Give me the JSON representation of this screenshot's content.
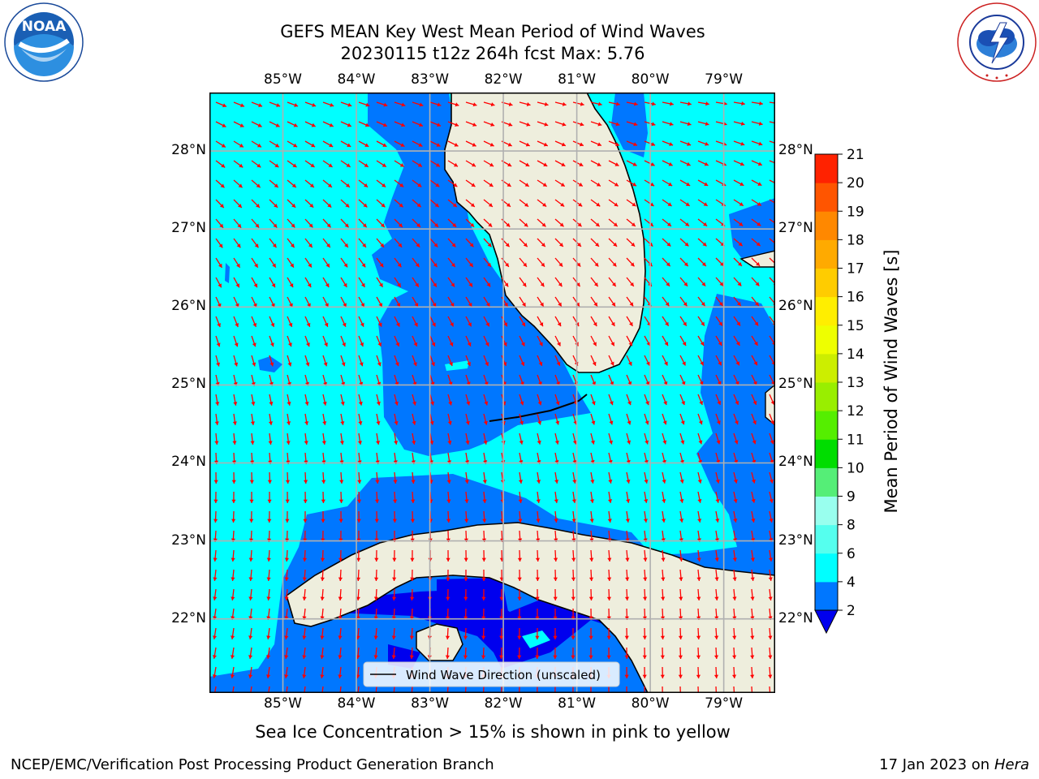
{
  "header": {
    "title_line1": "GEFS MEAN Key West Mean Period of Wind Waves",
    "title_line2": "20230115 t12z 264h fcst   Max: 5.76"
  },
  "logos": {
    "noaa": {
      "label": "NOAA",
      "ring_text": "NATIONAL OCEANIC AND ATMOSPHERIC ADMINISTRATION · U.S. DEPARTMENT OF COMMERCE",
      "icon": "noaa-logo-icon"
    },
    "nws": {
      "ring_text": "NATIONAL WEATHER SERVICE",
      "icon": "nws-logo-icon"
    }
  },
  "map": {
    "lon_range": [
      -86.0,
      -78.3
    ],
    "lat_range": [
      21.05,
      28.75
    ],
    "lon_ticks": [
      {
        "value": -85,
        "label": "85°W"
      },
      {
        "value": -84,
        "label": "84°W"
      },
      {
        "value": -83,
        "label": "83°W"
      },
      {
        "value": -82,
        "label": "82°W"
      },
      {
        "value": -81,
        "label": "81°W"
      },
      {
        "value": -80,
        "label": "80°W"
      },
      {
        "value": -79,
        "label": "79°W"
      }
    ],
    "lat_ticks": [
      {
        "value": 28,
        "label": "28°N"
      },
      {
        "value": 27,
        "label": "27°N"
      },
      {
        "value": 26,
        "label": "26°N"
      },
      {
        "value": 25,
        "label": "25°N"
      },
      {
        "value": 24,
        "label": "24°N"
      },
      {
        "value": 23,
        "label": "23°N"
      },
      {
        "value": 22,
        "label": "22°N"
      }
    ],
    "colors": {
      "land": "#eeeedd",
      "arrow": "#ff0000",
      "grid": "#b0b0b0"
    },
    "legend_label": "Wind Wave Direction (unscaled)",
    "sea_ice_note": "Sea Ice Concentration > 15% is shown in pink to yellow"
  },
  "colorbar": {
    "label": "Mean Period of Wind Waves [s]",
    "tick_labels": [
      "2",
      "4",
      "6",
      "8",
      "9",
      "10",
      "11",
      "12",
      "13",
      "14",
      "15",
      "16",
      "17",
      "18",
      "19",
      "20",
      "21"
    ],
    "colors": [
      "#0077ff",
      "#00ffff",
      "#55ffee",
      "#99ffee",
      "#55ee77",
      "#00dd00",
      "#55ee00",
      "#99ee00",
      "#ccee00",
      "#eeff00",
      "#ffee00",
      "#ffcc00",
      "#ffaa00",
      "#ff8800",
      "#ff5500",
      "#ff2200"
    ],
    "under_color": "#0000ee"
  },
  "footer": {
    "left": "NCEP/EMC/Verification Post Processing Product Generation Branch",
    "right_date": "17 Jan 2023 on ",
    "right_host": "Hera"
  }
}
